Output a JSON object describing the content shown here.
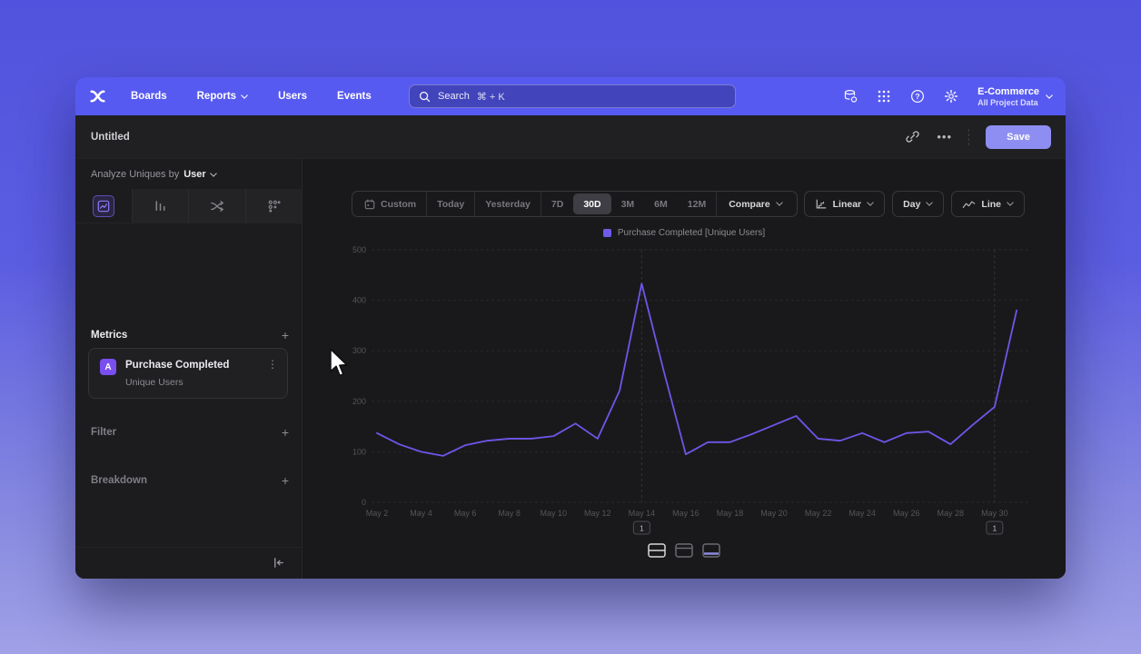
{
  "colors": {
    "accent": "#6c5ce7",
    "line": "#6d57ea",
    "nav_bg": "#575af0",
    "save_bg": "#8e8ef2",
    "badge_bg": "#7a4ff0"
  },
  "nav": {
    "items": [
      {
        "label": "Boards"
      },
      {
        "label": "Reports",
        "has_chevron": true
      },
      {
        "label": "Users"
      },
      {
        "label": "Events"
      }
    ],
    "search": {
      "label": "Search",
      "shortcut": "⌘ + K"
    },
    "right_icons": [
      "database",
      "apps-grid",
      "help",
      "settings"
    ],
    "project": {
      "name": "E-Commerce",
      "scope": "All Project Data"
    }
  },
  "header": {
    "title": "Untitled",
    "menu_dots": "•••",
    "save_label": "Save"
  },
  "sidebar": {
    "analyze_prefix": "Analyze Uniques by",
    "analyze_value": "User",
    "tabs": [
      "insights",
      "funnels",
      "flows",
      "retention"
    ],
    "selected_tab": "insights",
    "metrics_label": "Metrics",
    "add_symbol": "+",
    "metric_card": {
      "badge": "A",
      "title": "Purchase Completed",
      "subtitle": "Unique Users",
      "menu": "⋮"
    },
    "filter_label": "Filter",
    "breakdown_label": "Breakdown"
  },
  "toolbar": {
    "ranges": [
      "Custom",
      "Today",
      "Yesterday",
      "7D",
      "30D",
      "3M",
      "6M",
      "12M"
    ],
    "selected_range": "30D",
    "compare_label": "Compare",
    "scale_label": "Linear",
    "interval_label": "Day",
    "chart_type_label": "Line"
  },
  "legend": {
    "label": "Purchase Completed [Unique Users]"
  },
  "chart_data": {
    "type": "line",
    "title": "",
    "x": [
      "May 2",
      "May 3",
      "May 4",
      "May 5",
      "May 6",
      "May 7",
      "May 8",
      "May 9",
      "May 10",
      "May 11",
      "May 12",
      "May 13",
      "May 14",
      "May 15",
      "May 16",
      "May 17",
      "May 18",
      "May 19",
      "May 20",
      "May 21",
      "May 22",
      "May 23",
      "May 24",
      "May 25",
      "May 26",
      "May 27",
      "May 28",
      "May 29",
      "May 30",
      "May 31"
    ],
    "series": [
      {
        "name": "Purchase Completed [Unique Users]",
        "color": "#6d57ea",
        "values": [
          137,
          115,
          100,
          92,
          113,
          122,
          126,
          126,
          131,
          156,
          126,
          221,
          433,
          260,
          95,
          119,
          119,
          135,
          153,
          171,
          126,
          122,
          137,
          119,
          137,
          140,
          115,
          153,
          189,
          380
        ]
      }
    ],
    "ylim": [
      0,
      500
    ],
    "yticks": [
      0,
      100,
      200,
      300,
      400,
      500
    ],
    "xtick_every": 2,
    "grid": "horizontal-dashed",
    "legend_position": "top-center",
    "annotations": [
      {
        "x": "May 14",
        "label": "1"
      },
      {
        "x": "May 30",
        "label": "1"
      }
    ]
  }
}
